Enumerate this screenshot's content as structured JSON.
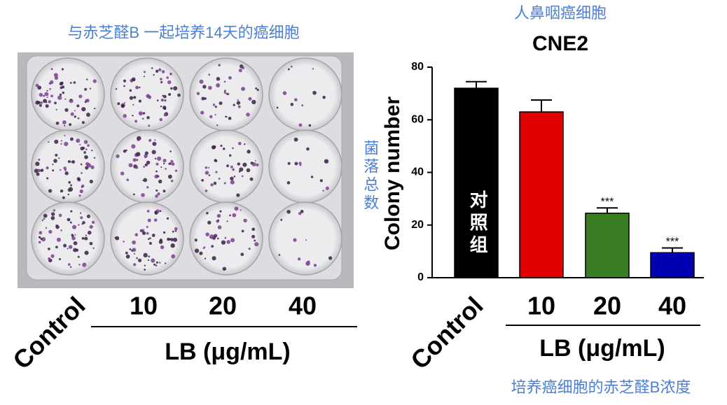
{
  "photo": {
    "caption": "与赤芝醛B 一起培养14天的癌细胞",
    "labels": [
      "Control",
      "10",
      "20",
      "40"
    ],
    "axis_label": "LB (μg/mL)"
  },
  "chart_data": {
    "type": "bar",
    "subtitle": "人鼻咽癌细胞",
    "title": "CNE2",
    "y_label": "Colony number",
    "y_label_cn": "菌落总数",
    "x_label": "LB (μg/mL)",
    "x_label_cn": "培养癌细胞的赤芝醛B浓度",
    "bar_annotation": "对照组",
    "categories": [
      "Control",
      "10",
      "20",
      "40"
    ],
    "values": [
      72,
      63,
      24.5,
      9.5
    ],
    "errors": [
      2.5,
      4.5,
      2,
      1.8
    ],
    "significance": [
      null,
      null,
      "***",
      "***"
    ],
    "colors": [
      "#000000",
      "#e00000",
      "#3a7d22",
      "#0000b0"
    ],
    "ylim": [
      0,
      80
    ],
    "yticks": [
      0,
      20,
      40,
      60,
      80
    ]
  }
}
